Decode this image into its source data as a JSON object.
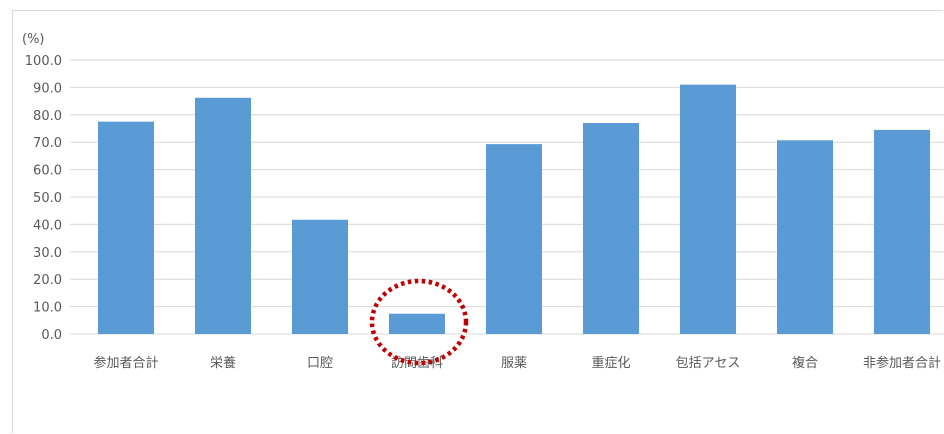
{
  "chart_data": {
    "type": "bar",
    "title": "",
    "ylabel": "(%)",
    "xlabel": "",
    "ylim": [
      0,
      100
    ],
    "yticks": [
      "0.0",
      "10.0",
      "20.0",
      "30.0",
      "40.0",
      "50.0",
      "60.0",
      "70.0",
      "80.0",
      "90.0",
      "100.0"
    ],
    "categories": [
      "参加者合計",
      "栄養",
      "口腔",
      "訪問歯科",
      "服薬",
      "重症化",
      "包括アセス",
      "複合",
      "非参加者合計"
    ],
    "values": [
      77.5,
      86.2,
      41.7,
      7.4,
      69.3,
      77.0,
      91.0,
      70.7,
      74.5
    ],
    "grid": true,
    "legend": "none",
    "highlighted_category": "訪問歯科",
    "colors": {
      "bar": "#5b9bd5",
      "grid": "#d9d9d9",
      "highlight": "#c00000",
      "text": "#595959"
    }
  }
}
